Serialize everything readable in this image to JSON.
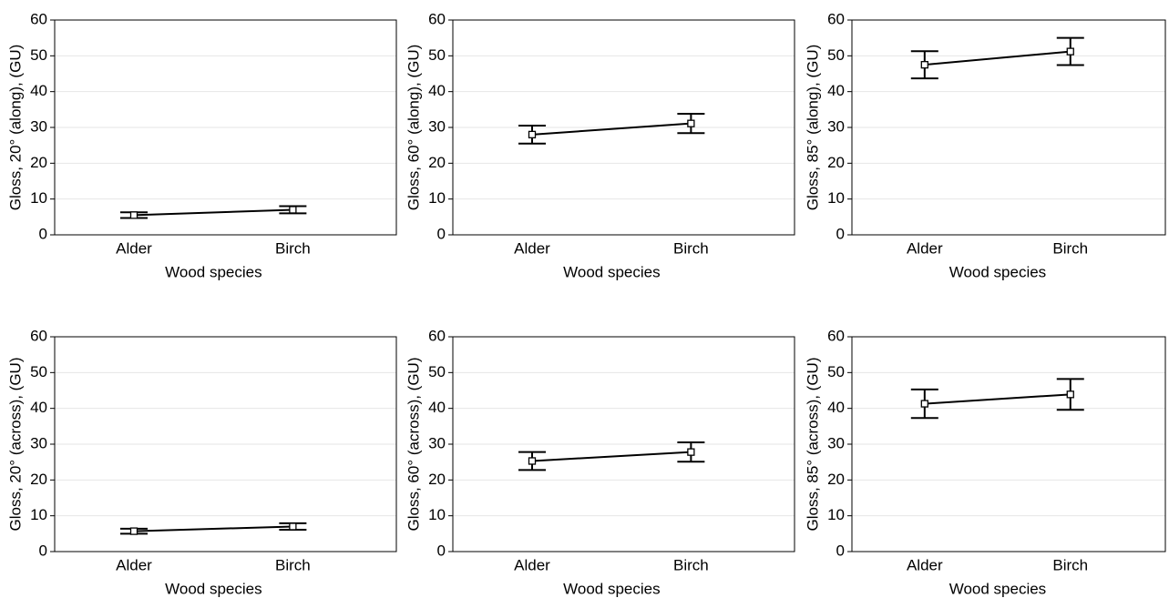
{
  "chart_data": [
    {
      "type": "line",
      "categories": [
        "Alder",
        "Birch"
      ],
      "values": [
        5.5,
        7.0
      ],
      "errors": [
        0.8,
        1.0
      ],
      "color": "#000000",
      "xlabel": "Wood species",
      "ylabel": "Gloss, 20° (along), (GU)",
      "ylim": [
        0,
        60
      ],
      "yticks": [
        0,
        10,
        20,
        30,
        40,
        50,
        60
      ],
      "grid": true
    },
    {
      "type": "line",
      "categories": [
        "Alder",
        "Birch"
      ],
      "values": [
        28.0,
        31.1
      ],
      "errors": [
        2.5,
        2.7
      ],
      "color": "#000000",
      "xlabel": "Wood species",
      "ylabel": "Gloss, 60° (along), (GU)",
      "ylim": [
        0,
        60
      ],
      "yticks": [
        0,
        10,
        20,
        30,
        40,
        50,
        60
      ],
      "grid": true
    },
    {
      "type": "line",
      "categories": [
        "Alder",
        "Birch"
      ],
      "values": [
        47.5,
        51.2
      ],
      "errors": [
        3.8,
        3.8
      ],
      "color": "#000000",
      "xlabel": "Wood species",
      "ylabel": "Gloss, 85° (along), (GU)",
      "ylim": [
        0,
        60
      ],
      "yticks": [
        0,
        10,
        20,
        30,
        40,
        50,
        60
      ],
      "grid": true
    },
    {
      "type": "line",
      "categories": [
        "Alder",
        "Birch"
      ],
      "values": [
        5.7,
        7.0
      ],
      "errors": [
        0.7,
        0.9
      ],
      "color": "#000000",
      "xlabel": "Wood species",
      "ylabel": "Gloss, 20° (across), (GU)",
      "ylim": [
        0,
        60
      ],
      "yticks": [
        0,
        10,
        20,
        30,
        40,
        50,
        60
      ],
      "grid": true
    },
    {
      "type": "line",
      "categories": [
        "Alder",
        "Birch"
      ],
      "values": [
        25.3,
        27.8
      ],
      "errors": [
        2.5,
        2.7
      ],
      "color": "#000000",
      "xlabel": "Wood species",
      "ylabel": "Gloss, 60° (across), (GU)",
      "ylim": [
        0,
        60
      ],
      "yticks": [
        0,
        10,
        20,
        30,
        40,
        50,
        60
      ],
      "grid": true
    },
    {
      "type": "line",
      "categories": [
        "Alder",
        "Birch"
      ],
      "values": [
        41.3,
        43.9
      ],
      "errors": [
        4.0,
        4.3
      ],
      "color": "#000000",
      "xlabel": "Wood species",
      "ylabel": "Gloss, 85° (across), (GU)",
      "ylim": [
        0,
        60
      ],
      "yticks": [
        0,
        10,
        20,
        30,
        40,
        50,
        60
      ],
      "grid": true
    }
  ]
}
